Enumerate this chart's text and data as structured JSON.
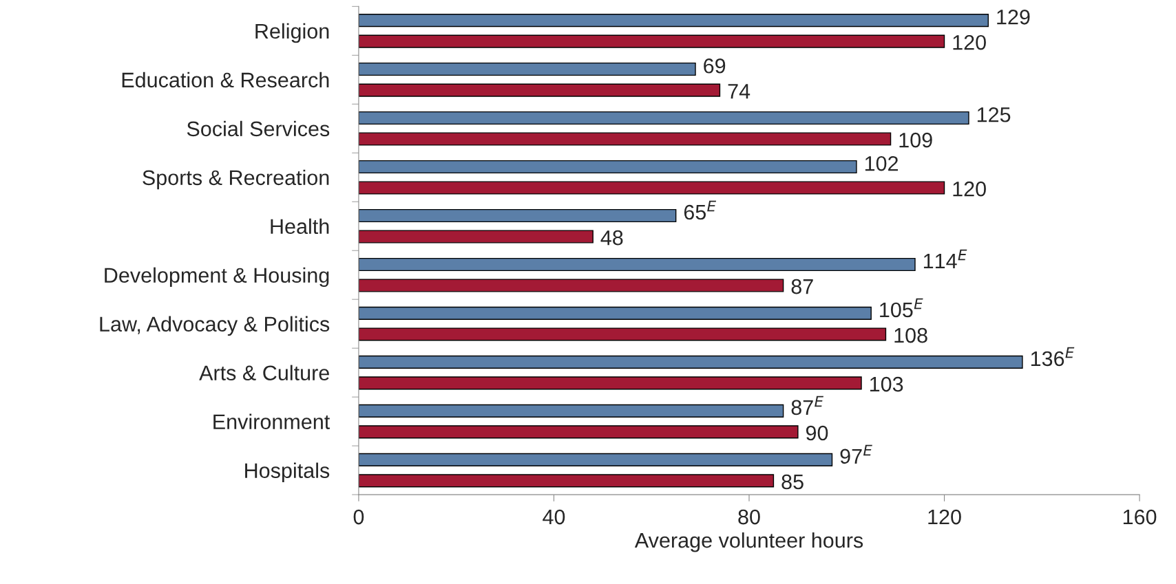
{
  "chart_data": {
    "type": "bar",
    "orientation": "horizontal",
    "xlabel": "Average volunteer hours",
    "categories": [
      "Religion",
      "Education & Research",
      "Social Services",
      "Sports & Recreation",
      "Health",
      "Development & Housing",
      "Law, Advocacy & Politics",
      "Arts & Culture",
      "Environment",
      "Hospitals"
    ],
    "series": [
      {
        "color": "#5b7fa8",
        "values": [
          129,
          69,
          125,
          102,
          65,
          114,
          105,
          136,
          87,
          97
        ],
        "value_labels": [
          "129",
          "69",
          "125",
          "102",
          "65$^{E}$",
          "114$^{E}$",
          "105$^{E}$",
          "136$^{E}$",
          "87$^{E}$",
          "97$^{E}$"
        ]
      },
      {
        "color": "#a31a35",
        "values": [
          120,
          74,
          109,
          120,
          48,
          87,
          108,
          103,
          90,
          85
        ],
        "value_labels": [
          "120",
          "74",
          "109",
          "120",
          "48",
          "87",
          "108",
          "103",
          "90",
          "85"
        ]
      }
    ],
    "xlim": [
      0,
      160
    ],
    "xticks": [
      0,
      40,
      80,
      120,
      160
    ],
    "grid": false,
    "legend": false
  }
}
